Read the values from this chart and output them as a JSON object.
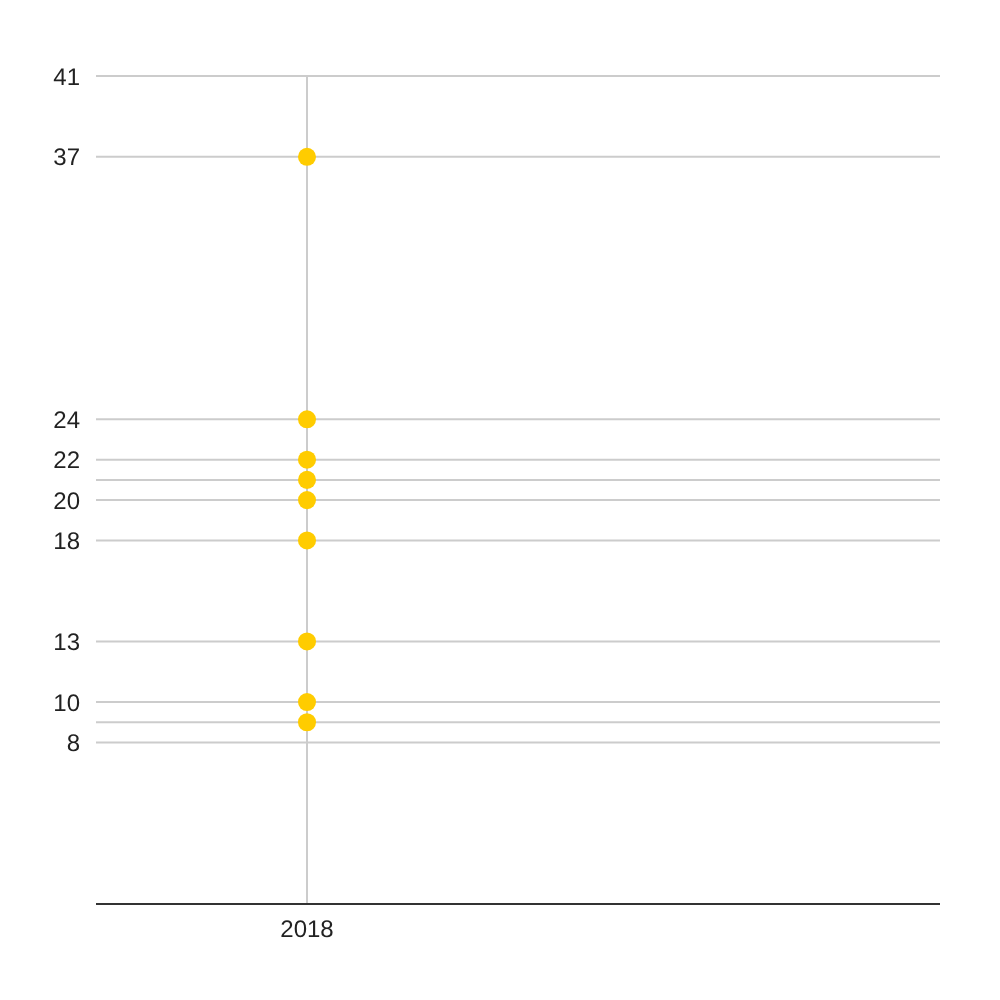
{
  "chart_data": {
    "type": "scatter",
    "categories": [
      "2018"
    ],
    "series": [
      {
        "color": "#ffcc00",
        "values": [
          37
        ]
      },
      {
        "color": "#ffcc00",
        "values": [
          24
        ]
      },
      {
        "color": "#ffcc00",
        "values": [
          22
        ]
      },
      {
        "color": "#ffcc00",
        "values": [
          21
        ]
      },
      {
        "color": "#ffcc00",
        "values": [
          20
        ]
      },
      {
        "color": "#ffcc00",
        "values": [
          18
        ]
      },
      {
        "color": "#ffcc00",
        "values": [
          13
        ]
      },
      {
        "color": "#ffcc00",
        "values": [
          10
        ]
      },
      {
        "color": "#ffcc00",
        "values": [
          9
        ]
      }
    ],
    "ylim": [
      0,
      41
    ],
    "yticks": [
      8,
      {
        "value": 9,
        "label": null
      },
      10,
      13,
      18,
      20,
      {
        "value": 21,
        "label": null
      },
      22,
      24,
      37,
      41
    ],
    "grid": true,
    "marker": "circle",
    "legend": false
  }
}
